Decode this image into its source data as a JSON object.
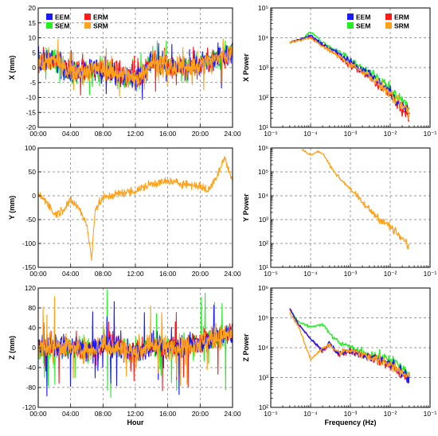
{
  "colors": {
    "EEM": "#1a1aff",
    "ERM": "#ff1a1a",
    "SEM": "#22ee22",
    "SRM": "#ffa21a"
  },
  "legend_labels": [
    "EEM",
    "ERM",
    "SEM",
    "SRM"
  ],
  "chart_data": [
    {
      "id": "x-time",
      "type": "line",
      "panel": "top-left",
      "xlabel": "",
      "ylabel": "X (mm)",
      "ylim": [
        -20,
        20
      ],
      "xticklabels": [
        "00:00",
        "04:00",
        "08:00",
        "12:00",
        "16:00",
        "20:00",
        "24:00"
      ],
      "yticks": [
        -20,
        -15,
        -10,
        -5,
        0,
        5,
        10,
        15,
        20
      ],
      "legend": true,
      "legend_position": "top-left",
      "series": [
        {
          "name": "EEM",
          "x_hours": [
            0,
            2,
            4,
            6,
            8,
            10,
            12,
            14,
            16,
            18,
            20,
            22,
            24
          ],
          "y": [
            2,
            3,
            -2,
            -1,
            0,
            -2,
            -4,
            2,
            0,
            0,
            1,
            3,
            5
          ]
        },
        {
          "name": "ERM",
          "x_hours": [
            0,
            2,
            4,
            6,
            8,
            10,
            12,
            14,
            16,
            18,
            20,
            22,
            24
          ],
          "y": [
            2,
            3,
            -2,
            -1,
            0,
            -2,
            -4,
            2,
            0,
            0,
            1,
            3,
            5
          ]
        },
        {
          "name": "SEM",
          "x_hours": [
            0,
            2,
            4,
            6,
            8,
            10,
            12,
            14,
            16,
            18,
            20,
            22,
            24
          ],
          "y": [
            2,
            3,
            -2,
            -1,
            0,
            -2,
            -5,
            2,
            0,
            0,
            1,
            3,
            5
          ]
        },
        {
          "name": "SRM",
          "x_hours": [
            0,
            2,
            4,
            6,
            8,
            10,
            12,
            14,
            16,
            18,
            20,
            22,
            24
          ],
          "y": [
            2,
            3,
            -2,
            -1,
            0,
            -2,
            -4,
            2,
            0,
            0,
            1,
            3,
            5
          ]
        }
      ]
    },
    {
      "id": "x-psd",
      "type": "line",
      "panel": "top-right",
      "xlabel": "",
      "ylabel": "X Power",
      "xscale": "log",
      "yscale": "log",
      "xlim": [
        1e-05,
        0.1
      ],
      "ylim": [
        10,
        100000
      ],
      "xticklabels": [
        "10⁻⁵",
        "10⁻⁴",
        "10⁻³",
        "10⁻²",
        "10⁻¹"
      ],
      "yticklabels": [
        "10¹",
        "10²",
        "10³",
        "10⁴",
        "10⁵"
      ],
      "legend": true,
      "legend_position": "top-right",
      "series": [
        {
          "name": "EEM",
          "freq_hz": [
            3e-05,
            6e-05,
            0.0001,
            0.0002,
            0.0005,
            0.001,
            0.003,
            0.01,
            0.03
          ],
          "power": [
            7000,
            9000,
            12000,
            6000,
            3000,
            1500,
            600,
            150,
            30
          ]
        },
        {
          "name": "ERM",
          "freq_hz": [
            3e-05,
            6e-05,
            0.0001,
            0.0002,
            0.0005,
            0.001,
            0.003,
            0.01,
            0.03
          ],
          "power": [
            7000,
            9000,
            11000,
            5500,
            2500,
            1200,
            500,
            120,
            20
          ]
        },
        {
          "name": "SEM",
          "freq_hz": [
            3e-05,
            6e-05,
            0.0001,
            0.0002,
            0.0005,
            0.001,
            0.003,
            0.01,
            0.03
          ],
          "power": [
            7000,
            9000,
            16000,
            7000,
            3500,
            1800,
            700,
            200,
            50
          ]
        },
        {
          "name": "SRM",
          "freq_hz": [
            3e-05,
            6e-05,
            0.0001,
            0.0002,
            0.0005,
            0.001,
            0.003,
            0.01,
            0.03
          ],
          "power": [
            7000,
            8500,
            10000,
            5000,
            2500,
            1300,
            550,
            130,
            30
          ]
        }
      ]
    },
    {
      "id": "y-time",
      "type": "line",
      "panel": "middle-left",
      "xlabel": "",
      "ylabel": "Y (mm)",
      "ylim": [
        -150,
        100
      ],
      "xticklabels": [
        "00:00",
        "04:00",
        "08:00",
        "12:00",
        "16:00",
        "20:00",
        "24:00"
      ],
      "yticks": [
        -150,
        -100,
        -50,
        0,
        50,
        100
      ],
      "series": [
        {
          "name": "SRM",
          "x_hours": [
            0,
            1,
            2,
            3,
            4,
            5,
            6,
            6.6,
            7,
            8,
            10,
            12,
            14,
            16,
            18,
            20,
            21,
            22,
            23,
            24
          ],
          "y": [
            0,
            -10,
            -40,
            -30,
            -10,
            -25,
            -60,
            -135,
            -30,
            -5,
            5,
            10,
            25,
            30,
            25,
            20,
            10,
            40,
            80,
            30
          ]
        }
      ]
    },
    {
      "id": "y-psd",
      "type": "line",
      "panel": "middle-right",
      "xlabel": "",
      "ylabel": "Y Power",
      "xscale": "log",
      "yscale": "log",
      "xlim": [
        1e-05,
        0.1
      ],
      "ylim": [
        10,
        1000000
      ],
      "xticklabels": [
        "10⁻⁵",
        "10⁻⁴",
        "10⁻³",
        "10⁻²",
        "10⁻¹"
      ],
      "yticklabels": [
        "10¹",
        "10²",
        "10³",
        "10⁴",
        "10⁵",
        "10⁶"
      ],
      "series": [
        {
          "name": "SRM",
          "freq_hz": [
            6e-05,
            0.0001,
            0.00015,
            0.0002,
            0.0003,
            0.0005,
            0.001,
            0.002,
            0.005,
            0.01,
            0.02,
            0.03
          ],
          "power": [
            900000,
            500000,
            700000,
            600000,
            200000,
            60000,
            20000,
            5000,
            1200,
            500,
            150,
            80
          ]
        }
      ]
    },
    {
      "id": "z-time",
      "type": "line",
      "panel": "bottom-left",
      "xlabel": "Hour",
      "ylabel": "Z (mm)",
      "ylim": [
        -120,
        120
      ],
      "xticklabels": [
        "00:00",
        "04:00",
        "08:00",
        "12:00",
        "16:00",
        "20:00",
        "24:00"
      ],
      "yticks": [
        -120,
        -80,
        -40,
        0,
        40,
        80,
        120
      ],
      "series": [
        {
          "name": "EEM",
          "x_hours": [
            0,
            2,
            4,
            6,
            8,
            10,
            12,
            14,
            16,
            18,
            20,
            22,
            24
          ],
          "y": [
            0,
            5,
            0,
            -5,
            5,
            0,
            -10,
            5,
            0,
            5,
            10,
            20,
            30
          ]
        },
        {
          "name": "ERM",
          "x_hours": [
            0,
            2,
            4,
            6,
            8,
            10,
            12,
            14,
            16,
            18,
            20,
            22,
            24
          ],
          "y": [
            0,
            5,
            0,
            -5,
            5,
            0,
            -10,
            5,
            0,
            5,
            10,
            20,
            30
          ]
        },
        {
          "name": "SEM",
          "x_hours": [
            0,
            2,
            4,
            6,
            8,
            10,
            12,
            14,
            16,
            18,
            20,
            22,
            24
          ],
          "y": [
            0,
            5,
            0,
            -5,
            5,
            0,
            -10,
            5,
            0,
            5,
            10,
            20,
            30
          ]
        },
        {
          "name": "SRM",
          "x_hours": [
            0,
            2,
            4,
            6,
            8,
            10,
            12,
            14,
            16,
            18,
            20,
            22,
            24
          ],
          "y": [
            0,
            5,
            0,
            -5,
            5,
            0,
            -10,
            5,
            0,
            5,
            10,
            20,
            30
          ]
        }
      ]
    },
    {
      "id": "z-psd",
      "type": "line",
      "panel": "bottom-right",
      "xlabel": "Frequency (Hz)",
      "ylabel": "Z Power",
      "xscale": "log",
      "yscale": "log",
      "xlim": [
        1e-05,
        0.1
      ],
      "ylim": [
        100,
        1000000
      ],
      "xticklabels": [
        "10⁻⁵",
        "10⁻⁴",
        "10⁻³",
        "10⁻²",
        "10⁻¹"
      ],
      "yticklabels": [
        "10²",
        "10³",
        "10⁴",
        "10⁵",
        "10⁶"
      ],
      "series": [
        {
          "name": "EEM",
          "freq_hz": [
            3e-05,
            5e-05,
            0.0001,
            0.0002,
            0.0003,
            0.0005,
            0.001,
            0.003,
            0.01,
            0.02,
            0.03
          ],
          "power": [
            200000,
            60000,
            20000,
            8000,
            15000,
            6000,
            8000,
            5000,
            3000,
            1500,
            1000
          ]
        },
        {
          "name": "ERM",
          "freq_hz": [
            3e-05,
            5e-05,
            0.0001,
            0.0002,
            0.0003,
            0.0005,
            0.001,
            0.003,
            0.01,
            0.02,
            0.03
          ],
          "power": [
            200000,
            60000,
            20000,
            7000,
            14000,
            6000,
            8000,
            5000,
            2500,
            1200,
            800
          ]
        },
        {
          "name": "SEM",
          "freq_hz": [
            3e-05,
            5e-05,
            0.0001,
            0.0002,
            0.0003,
            0.0005,
            0.001,
            0.003,
            0.01,
            0.02,
            0.03
          ],
          "power": [
            200000,
            70000,
            50000,
            60000,
            30000,
            15000,
            10000,
            6000,
            4000,
            2000,
            1200
          ]
        },
        {
          "name": "SRM",
          "freq_hz": [
            3e-05,
            5e-05,
            0.0001,
            0.0002,
            0.0003,
            0.0005,
            0.001,
            0.003,
            0.01,
            0.02,
            0.03
          ],
          "power": [
            150000,
            50000,
            4000,
            10000,
            12000,
            7000,
            8000,
            5000,
            3000,
            1500,
            1200
          ]
        }
      ]
    }
  ]
}
